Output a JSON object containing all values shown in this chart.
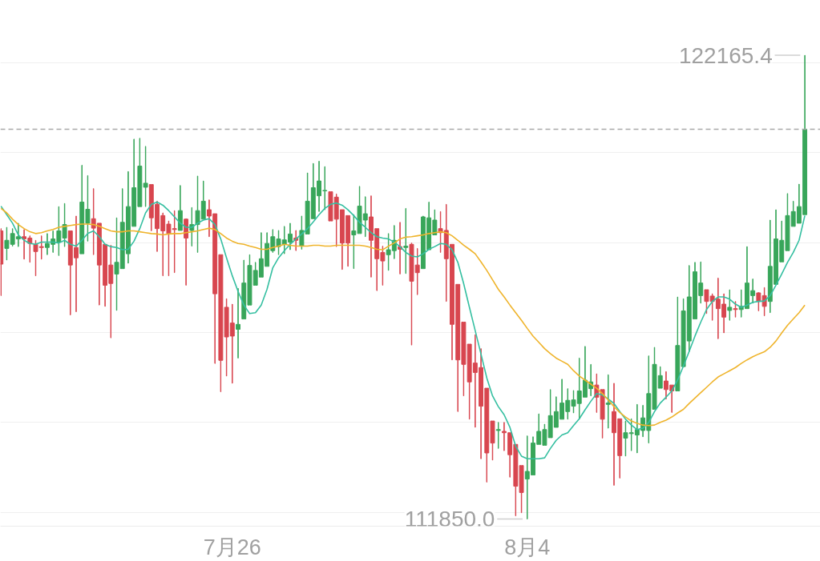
{
  "chart_data": {
    "type": "candlestick",
    "categories": [
      null,
      null,
      null,
      null,
      null,
      null,
      null,
      null,
      null,
      null,
      null,
      null,
      null,
      null,
      null,
      null,
      null,
      null,
      null,
      null,
      null,
      null,
      null,
      null,
      null,
      null,
      null,
      null,
      null,
      null,
      null,
      null,
      null,
      null,
      null,
      null,
      null,
      null,
      null,
      null,
      "7月26",
      null,
      null,
      null,
      null,
      null,
      null,
      null,
      null,
      null,
      null,
      null,
      null,
      null,
      null,
      null,
      null,
      null,
      null,
      null,
      null,
      null,
      null,
      null,
      null,
      null,
      null,
      null,
      null,
      null,
      null,
      null,
      null,
      null,
      null,
      null,
      null,
      null,
      null,
      null,
      null,
      null,
      null,
      null,
      null,
      null,
      null,
      null,
      null,
      null,
      null,
      "8月4",
      null,
      null,
      null,
      null,
      null,
      null,
      null,
      null,
      null,
      null,
      null,
      null,
      null,
      null,
      null,
      null,
      null,
      null,
      null,
      null,
      null,
      null,
      null,
      null,
      null,
      null,
      null,
      null,
      null,
      null,
      null,
      null,
      null,
      null,
      null,
      null,
      null,
      null,
      null,
      null,
      null,
      null,
      null,
      null,
      null,
      null,
      null,
      null
    ],
    "ohlc": [
      [
        118260,
        118310,
        116820,
        117520
      ],
      [
        117870,
        118340,
        117610,
        118050
      ],
      [
        117960,
        118310,
        117920,
        118200
      ],
      [
        118080,
        118430,
        117910,
        118130
      ],
      [
        118130,
        118290,
        117630,
        118080
      ],
      [
        118100,
        118150,
        117560,
        117980
      ],
      [
        117960,
        118050,
        117260,
        117800
      ],
      [
        117910,
        118150,
        117630,
        117890
      ],
      [
        117890,
        118200,
        117730,
        117980
      ],
      [
        117960,
        118260,
        117780,
        118080
      ],
      [
        118010,
        118800,
        117710,
        118260
      ],
      [
        118100,
        118870,
        117910,
        118400
      ],
      [
        118260,
        118260,
        116390,
        117500
      ],
      [
        117890,
        118590,
        116460,
        117660
      ],
      [
        117750,
        119720,
        117750,
        118900
      ],
      [
        118430,
        119490,
        118030,
        118740
      ],
      [
        118530,
        119200,
        117730,
        118320
      ],
      [
        118430,
        118430,
        116610,
        117500
      ],
      [
        117960,
        117960,
        116580,
        117050
      ],
      [
        117500,
        117940,
        115880,
        117090
      ],
      [
        117300,
        118550,
        116490,
        117560
      ],
      [
        117420,
        119200,
        117420,
        118450
      ],
      [
        117750,
        119580,
        117540,
        118800
      ],
      [
        118360,
        120300,
        118360,
        119220
      ],
      [
        118800,
        120320,
        118800,
        119700
      ],
      [
        119230,
        120140,
        118800,
        119320
      ],
      [
        119290,
        119290,
        118260,
        118550
      ],
      [
        118850,
        118920,
        117800,
        118310
      ],
      [
        118600,
        118660,
        117260,
        118260
      ],
      [
        118410,
        118480,
        117260,
        118200
      ],
      [
        118310,
        118710,
        117330,
        118290
      ],
      [
        118270,
        119270,
        118270,
        118710
      ],
      [
        118520,
        118530,
        117050,
        118100
      ],
      [
        118270,
        118780,
        117920,
        118400
      ],
      [
        118400,
        119480,
        117780,
        118710
      ],
      [
        118520,
        119370,
        118520,
        118920
      ],
      [
        118730,
        118950,
        118130,
        118590
      ],
      [
        118640,
        118640,
        115310,
        116860
      ],
      [
        117730,
        117730,
        114680,
        115380
      ],
      [
        116560,
        116750,
        115030,
        115900
      ],
      [
        116210,
        116630,
        114870,
        115920
      ],
      [
        116070,
        116980,
        115430,
        116180
      ],
      [
        116300,
        117610,
        116300,
        117100
      ],
      [
        116610,
        117730,
        116610,
        117490
      ],
      [
        117050,
        117560,
        117050,
        117380
      ],
      [
        117230,
        118220,
        117230,
        117640
      ],
      [
        117470,
        118220,
        117470,
        117980
      ],
      [
        117820,
        118290,
        117780,
        118130
      ],
      [
        117910,
        118270,
        117730,
        118080
      ],
      [
        117960,
        118360,
        117750,
        118060
      ],
      [
        118010,
        118430,
        117840,
        118190
      ],
      [
        118100,
        118270,
        117820,
        118050
      ],
      [
        117920,
        118590,
        117850,
        118270
      ],
      [
        118190,
        119550,
        118190,
        118920
      ],
      [
        118530,
        119760,
        118530,
        119220
      ],
      [
        119040,
        119810,
        118690,
        119370
      ],
      [
        119150,
        119690,
        118730,
        119160
      ],
      [
        119130,
        119130,
        118480,
        118480
      ],
      [
        119010,
        119080,
        117910,
        118520
      ],
      [
        118730,
        118730,
        117400,
        117990
      ],
      [
        118600,
        118600,
        117470,
        117990
      ],
      [
        118170,
        118620,
        117420,
        118260
      ],
      [
        118200,
        119250,
        118200,
        118810
      ],
      [
        118500,
        119020,
        118130,
        118640
      ],
      [
        118570,
        119040,
        117230,
        118050
      ],
      [
        118310,
        118310,
        116930,
        117640
      ],
      [
        117780,
        117920,
        117050,
        117590
      ],
      [
        117730,
        118200,
        117380,
        117840
      ],
      [
        117820,
        118380,
        117640,
        118050
      ],
      [
        117910,
        118450,
        117300,
        117850
      ],
      [
        117890,
        118760,
        117310,
        117920
      ],
      [
        117960,
        117990,
        115720,
        117140
      ],
      [
        117500,
        117870,
        116840,
        117330
      ],
      [
        117420,
        118590,
        117420,
        118570
      ],
      [
        117840,
        118900,
        117840,
        118550
      ],
      [
        118170,
        118730,
        118170,
        118500
      ],
      [
        118310,
        118690,
        117780,
        118220
      ],
      [
        118270,
        118850,
        116690,
        117640
      ],
      [
        117960,
        117960,
        115390,
        116180
      ],
      [
        117070,
        117070,
        114240,
        115390
      ],
      [
        116230,
        116230,
        114590,
        115290
      ],
      [
        115740,
        115740,
        114070,
        114900
      ],
      [
        115320,
        115950,
        113890,
        115110
      ],
      [
        115220,
        115640,
        113190,
        114360
      ],
      [
        114760,
        114760,
        112670,
        113320
      ],
      [
        114030,
        114030,
        113160,
        113540
      ],
      [
        113820,
        114000,
        113420,
        113840
      ],
      [
        113800,
        114000,
        113370,
        113770
      ],
      [
        113770,
        113770,
        112780,
        113280
      ],
      [
        113510,
        113510,
        111920,
        112580
      ],
      [
        113040,
        113040,
        111990,
        112440
      ],
      [
        112740,
        113700,
        111850.0,
        112910
      ],
      [
        112830,
        113680,
        112830,
        113540
      ],
      [
        113510,
        114190,
        113510,
        113800
      ],
      [
        113490,
        113960,
        113490,
        113840
      ],
      [
        113660,
        114730,
        113660,
        114150
      ],
      [
        113890,
        114570,
        113890,
        114240
      ],
      [
        114070,
        114960,
        114070,
        114430
      ],
      [
        114240,
        114750,
        114070,
        114490
      ],
      [
        114360,
        114710,
        114210,
        114500
      ],
      [
        114420,
        115430,
        114070,
        114700
      ],
      [
        114560,
        115690,
        114560,
        114940
      ],
      [
        114750,
        115290,
        114590,
        114900
      ],
      [
        114830,
        115080,
        114220,
        114560
      ],
      [
        114730,
        114730,
        113650,
        114070
      ],
      [
        114400,
        115060,
        113870,
        114430
      ],
      [
        114240,
        114870,
        112600,
        113770
      ],
      [
        114080,
        114080,
        112760,
        113260
      ],
      [
        113650,
        114030,
        113250,
        113770
      ],
      [
        113750,
        114080,
        113370,
        113770
      ],
      [
        113720,
        114400,
        113320,
        113840
      ],
      [
        113820,
        114380,
        113680,
        114100
      ],
      [
        113820,
        115480,
        113540,
        114640
      ],
      [
        114290,
        115670,
        114290,
        115290
      ],
      [
        114760,
        115240,
        114760,
        115040
      ],
      [
        114920,
        115130,
        114520,
        114730
      ],
      [
        114830,
        114830,
        114220,
        114700
      ],
      [
        114700,
        116790,
        114700,
        115710
      ],
      [
        115240,
        116750,
        115240,
        116480
      ],
      [
        115810,
        117490,
        115570,
        116790
      ],
      [
        116300,
        117560,
        116300,
        117350
      ],
      [
        116820,
        117570,
        116650,
        117100
      ],
      [
        116950,
        116950,
        116420,
        116690
      ],
      [
        116810,
        116860,
        116270,
        116690
      ],
      [
        116740,
        117210,
        115860,
        116530
      ],
      [
        116630,
        116860,
        115990,
        116340
      ],
      [
        116490,
        116950,
        116270,
        116560
      ],
      [
        116530,
        116690,
        116340,
        116510
      ],
      [
        116510,
        116950,
        116340,
        116580
      ],
      [
        116530,
        117910,
        116530,
        117100
      ],
      [
        116820,
        117190,
        116650,
        116930
      ],
      [
        116880,
        116890,
        116480,
        116690
      ],
      [
        116820,
        117000,
        116370,
        116580
      ],
      [
        116690,
        118500,
        116440,
        117470
      ],
      [
        117070,
        118730,
        117070,
        118080
      ],
      [
        117570,
        118480,
        117570,
        118050
      ],
      [
        117820,
        119090,
        117820,
        118600
      ],
      [
        118360,
        118920,
        118360,
        118690
      ],
      [
        118430,
        119300,
        118430,
        118800
      ],
      [
        118620,
        122165.4,
        118620,
        120520
      ]
    ],
    "colors": [
      "#d8464f",
      "#38a65a",
      "#38a65a",
      "#38a65a",
      "#d8464f",
      "#d8464f",
      "#d8464f",
      "#d8464f",
      "#38a65a",
      "#38a65a",
      "#38a65a",
      "#38a65a",
      "#d8464f",
      "#d8464f",
      "#38a65a",
      "#38a65a",
      "#d8464f",
      "#d8464f",
      "#d8464f",
      "#d8464f",
      "#38a65a",
      "#38a65a",
      "#38a65a",
      "#38a65a",
      "#38a65a",
      "#38a65a",
      "#d8464f",
      "#d8464f",
      "#d8464f",
      "#d8464f",
      "#d8464f",
      "#38a65a",
      "#d8464f",
      "#38a65a",
      "#38a65a",
      "#38a65a",
      "#d8464f",
      "#d8464f",
      "#d8464f",
      "#d8464f",
      "#d8464f",
      "#38a65a",
      "#38a65a",
      "#38a65a",
      "#38a65a",
      "#38a65a",
      "#38a65a",
      "#38a65a",
      "#38a65a",
      "#38a65a",
      "#38a65a",
      "#d8464f",
      "#38a65a",
      "#38a65a",
      "#38a65a",
      "#38a65a",
      "#38a65a",
      "#d8464f",
      "#d8464f",
      "#d8464f",
      "#d8464f",
      "#38a65a",
      "#38a65a",
      "#38a65a",
      "#d8464f",
      "#d8464f",
      "#d8464f",
      "#38a65a",
      "#38a65a",
      "#d8464f",
      "#38a65a",
      "#d8464f",
      "#d8464f",
      "#38a65a",
      "#38a65a",
      "#38a65a",
      "#d8464f",
      "#d8464f",
      "#d8464f",
      "#d8464f",
      "#d8464f",
      "#d8464f",
      "#d8464f",
      "#d8464f",
      "#d8464f",
      "#d8464f",
      "#38a65a",
      "#d8464f",
      "#d8464f",
      "#d8464f",
      "#d8464f",
      "#38a65a",
      "#38a65a",
      "#38a65a",
      "#38a65a",
      "#38a65a",
      "#38a65a",
      "#38a65a",
      "#38a65a",
      "#38a65a",
      "#38a65a",
      "#38a65a",
      "#38a65a",
      "#d8464f",
      "#d8464f",
      "#38a65a",
      "#d8464f",
      "#d8464f",
      "#38a65a",
      "#38a65a",
      "#38a65a",
      "#38a65a",
      "#38a65a",
      "#38a65a",
      "#38a65a",
      "#d8464f",
      "#d8464f",
      "#38a65a",
      "#38a65a",
      "#38a65a",
      "#38a65a",
      "#38a65a",
      "#d8464f",
      "#d8464f",
      "#d8464f",
      "#d8464f",
      "#38a65a",
      "#d8464f",
      "#38a65a",
      "#38a65a",
      "#38a65a",
      "#d8464f",
      "#d8464f",
      "#38a65a",
      "#38a65a",
      "#38a65a",
      "#38a65a",
      "#38a65a",
      "#38a65a",
      "#38a65a"
    ],
    "series": [
      {
        "type": "line",
        "color": "#35bfa1",
        "values": [
          118810,
          118620,
          118430,
          118170,
          118050,
          117980,
          117960,
          118010,
          118010,
          118010,
          117990,
          118050,
          117960,
          117920,
          118050,
          118200,
          118260,
          118130,
          117960,
          117910,
          117890,
          117840,
          117850,
          118030,
          118310,
          118660,
          118850,
          118900,
          118830,
          118710,
          118570,
          118430,
          118340,
          118340,
          118430,
          118500,
          118530,
          118400,
          118080,
          117660,
          117260,
          116910,
          116610,
          116420,
          116440,
          116610,
          116960,
          117440,
          117660,
          117820,
          117960,
          118080,
          118190,
          118310,
          118460,
          118620,
          118760,
          118850,
          118880,
          118830,
          118730,
          118600,
          118450,
          118340,
          118220,
          118130,
          118100,
          118080,
          118010,
          117910,
          117780,
          117700,
          117680,
          117750,
          117850,
          117910,
          117980,
          117960,
          117840,
          117560,
          117090,
          116560,
          116040,
          115520,
          114990,
          114590,
          114350,
          114170,
          113890,
          113470,
          113250,
          113190,
          113190,
          113190,
          113210,
          113420,
          113600,
          113720,
          113770,
          113930,
          114080,
          114280,
          114470,
          114640,
          114610,
          114520,
          114420,
          114240,
          114070,
          113940,
          113840,
          113870,
          114000,
          114240,
          114430,
          114560,
          114700,
          114940,
          115250,
          115580,
          115920,
          116230,
          116510,
          116690,
          116790,
          116790,
          116740,
          116630,
          116560,
          116610,
          116670,
          116690,
          116700,
          116820,
          117050,
          117300,
          117560,
          117780,
          118050,
          118600
        ]
      },
      {
        "type": "line",
        "color": "#efb42c",
        "values": [
          118760,
          118660,
          118520,
          118400,
          118310,
          118240,
          118200,
          118220,
          118260,
          118290,
          118340,
          118360,
          118380,
          118400,
          118410,
          118410,
          118400,
          118360,
          118310,
          118260,
          118240,
          118240,
          118260,
          118260,
          118240,
          118220,
          118200,
          118190,
          118170,
          118190,
          118200,
          118200,
          118220,
          118240,
          118260,
          118290,
          118320,
          118290,
          118200,
          118100,
          118030,
          117980,
          117960,
          117920,
          117890,
          117850,
          117850,
          117890,
          117920,
          117960,
          117940,
          117920,
          117920,
          117920,
          117940,
          117940,
          117920,
          117920,
          117940,
          117940,
          117940,
          117940,
          117940,
          117920,
          117890,
          117850,
          117840,
          117920,
          117990,
          118080,
          118120,
          118130,
          118150,
          118170,
          118200,
          118220,
          118240,
          118220,
          118150,
          118050,
          117940,
          117850,
          117750,
          117570,
          117380,
          117170,
          116960,
          116790,
          116610,
          116440,
          116270,
          116090,
          115920,
          115780,
          115640,
          115530,
          115430,
          115360,
          115290,
          115150,
          115030,
          114940,
          114850,
          114760,
          114640,
          114500,
          114350,
          114220,
          114120,
          114030,
          113980,
          113940,
          113930,
          113940,
          114000,
          114050,
          114120,
          114210,
          114290,
          114420,
          114540,
          114660,
          114780,
          114900,
          115010,
          115080,
          115150,
          115220,
          115310,
          115390,
          115460,
          115520,
          115570,
          115670,
          115810,
          115990,
          116160,
          116300,
          116440,
          116610
        ]
      }
    ],
    "yticks": [
      {
        "value": 112000,
        "label": null
      },
      {
        "value": 114000,
        "label": null
      },
      {
        "value": 116000,
        "label": null
      },
      {
        "value": 118000,
        "label": null
      },
      {
        "value": 120000,
        "label": null
      },
      {
        "value": 122000,
        "label": null
      }
    ],
    "tick_labels": "x",
    "grid": "y",
    "ref_lines": [
      {
        "axis": "y",
        "value": 120520,
        "color": "#a8a8a8",
        "line_style": "dashed"
      }
    ],
    "annotations": [
      "122165.4",
      "111850.0"
    ]
  }
}
